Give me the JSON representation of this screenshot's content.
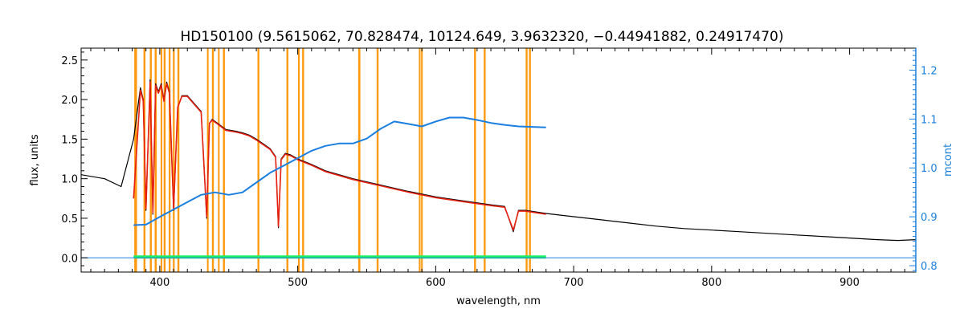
{
  "chart_data": {
    "type": "line",
    "title": "HD150100    (9.5615062, 70.828474, 10124.649, 3.9632320, −0.44941882, 0.24917470)",
    "xlabel": "wavelength, nm",
    "ylabel": "flux, units",
    "ylabel_right": "mcont",
    "xlim": [
      343,
      948
    ],
    "ylim": [
      -0.18,
      2.65
    ],
    "ylim_right": [
      0.787,
      1.245
    ],
    "x_ticks": [
      400,
      500,
      600,
      700,
      800,
      900
    ],
    "y_ticks": [
      0.0,
      0.5,
      1.0,
      1.5,
      2.0,
      2.5
    ],
    "y_ticks_right": [
      0.8,
      0.9,
      1.0,
      1.1,
      1.2
    ],
    "grid": false,
    "colors": {
      "observed": "#000000",
      "model": "#e8200f",
      "continuum": "#1a7fe0",
      "residual": "#22f064",
      "mask": "#ff9a10",
      "right_axis": "#1a7fe0"
    },
    "mask_regions": [
      [
        381.5,
        383.5
      ],
      [
        388.2,
        389.6
      ],
      [
        392.8,
        394.2
      ],
      [
        396.3,
        397.8
      ],
      [
        400.6,
        401.8
      ],
      [
        402.8,
        404.2
      ],
      [
        406.5,
        407.8
      ],
      [
        409.5,
        410.8
      ],
      [
        412.8,
        414.2
      ],
      [
        434.2,
        435.4
      ],
      [
        437.8,
        439.2
      ],
      [
        442.2,
        443.2
      ],
      [
        445.8,
        447.2
      ],
      [
        470.8,
        472.2
      ],
      [
        491.8,
        493.2
      ],
      [
        500.2,
        501.4
      ],
      [
        503.2,
        504.6
      ],
      [
        543.8,
        545.4
      ],
      [
        557.2,
        558.6
      ],
      [
        587.8,
        589.0
      ],
      [
        589.4,
        590.6
      ],
      [
        627.8,
        629.2
      ],
      [
        634.8,
        636.2
      ],
      [
        665.2,
        666.6
      ],
      [
        667.6,
        669.0
      ]
    ],
    "series": [
      {
        "role": "observed",
        "x": [
          343,
          360,
          372,
          378,
          381,
          386,
          388,
          390,
          393,
          395,
          397,
          399,
          401,
          403,
          405,
          407,
          410,
          413,
          416,
          420,
          425,
          430,
          434,
          436,
          438,
          442,
          448,
          455,
          460,
          465,
          470,
          475,
          480,
          484,
          486,
          488,
          491,
          495,
          500,
          510,
          520,
          530,
          540,
          560,
          580,
          600,
          620,
          640,
          650,
          656.3,
          660,
          665,
          680,
          700,
          720,
          740,
          760,
          780,
          800,
          820,
          840,
          860,
          880,
          900,
          920,
          935,
          948
        ],
        "y": [
          1.05,
          1.0,
          0.9,
          1.3,
          1.5,
          2.15,
          2.0,
          0.6,
          2.25,
          0.55,
          2.2,
          2.1,
          2.2,
          2.0,
          2.22,
          2.1,
          0.6,
          1.9,
          2.05,
          2.05,
          1.95,
          1.85,
          0.5,
          1.7,
          1.75,
          1.7,
          1.62,
          1.6,
          1.58,
          1.55,
          1.5,
          1.44,
          1.38,
          1.28,
          0.38,
          1.25,
          1.32,
          1.3,
          1.25,
          1.18,
          1.1,
          1.05,
          1.0,
          0.92,
          0.84,
          0.77,
          0.72,
          0.67,
          0.65,
          0.33,
          0.6,
          0.6,
          0.56,
          0.52,
          0.48,
          0.44,
          0.4,
          0.37,
          0.35,
          0.33,
          0.31,
          0.29,
          0.27,
          0.25,
          0.23,
          0.22,
          0.23
        ]
      },
      {
        "role": "model",
        "x": [
          381,
          386,
          388,
          390,
          393,
          395,
          397,
          399,
          401,
          403,
          405,
          407,
          410,
          413,
          416,
          420,
          425,
          430,
          434,
          436,
          438,
          442,
          448,
          455,
          460,
          465,
          470,
          475,
          480,
          484,
          486,
          488,
          491,
          495,
          500,
          510,
          520,
          530,
          540,
          560,
          580,
          600,
          620,
          640,
          650,
          656.3,
          660,
          665,
          680
        ],
        "y": [
          0.75,
          2.12,
          1.98,
          0.62,
          2.22,
          0.57,
          2.18,
          2.08,
          2.18,
          1.98,
          2.2,
          2.08,
          0.62,
          1.9,
          2.04,
          2.04,
          1.94,
          1.84,
          0.52,
          1.7,
          1.74,
          1.69,
          1.61,
          1.59,
          1.57,
          1.54,
          1.49,
          1.43,
          1.37,
          1.27,
          0.4,
          1.24,
          1.31,
          1.29,
          1.24,
          1.17,
          1.09,
          1.04,
          0.99,
          0.91,
          0.83,
          0.76,
          0.71,
          0.66,
          0.64,
          0.35,
          0.59,
          0.59,
          0.55
        ]
      },
      {
        "role": "continuum",
        "axis": "right",
        "x": [
          381,
          390,
          400,
          410,
          420,
          430,
          440,
          450,
          460,
          470,
          480,
          490,
          500,
          510,
          520,
          530,
          540,
          550,
          560,
          570,
          580,
          590,
          600,
          610,
          620,
          630,
          640,
          650,
          660,
          670,
          680
        ],
        "y": [
          0.883,
          0.884,
          0.9,
          0.915,
          0.93,
          0.945,
          0.95,
          0.945,
          0.95,
          0.97,
          0.99,
          1.005,
          1.02,
          1.035,
          1.045,
          1.05,
          1.05,
          1.06,
          1.08,
          1.095,
          1.09,
          1.085,
          1.095,
          1.103,
          1.103,
          1.098,
          1.092,
          1.088,
          1.085,
          1.084,
          1.083
        ]
      },
      {
        "role": "residual",
        "x": [
          381,
          680
        ],
        "y": [
          0.01,
          0.01
        ]
      },
      {
        "role": "zero-line",
        "x": [
          343,
          948
        ],
        "y": [
          0.0,
          0.0
        ]
      }
    ]
  }
}
